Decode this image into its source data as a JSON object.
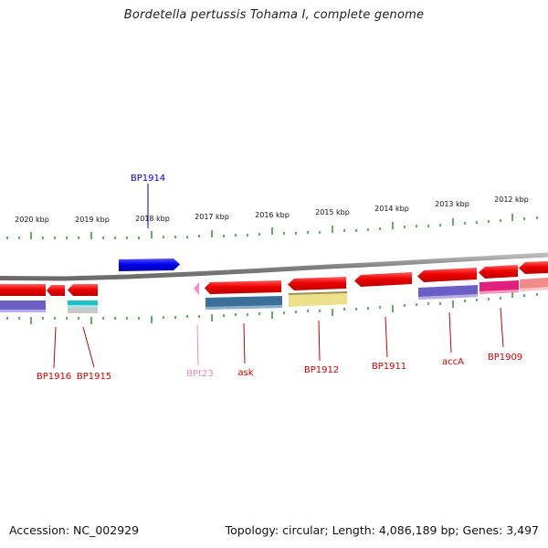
{
  "title": "Bordetella pertussis Tohama I, complete genome",
  "footer": {
    "accession": "Accession: NC_002929",
    "summary": "Topology: circular; Length: 4,086,189 bp; Genes: 3,497"
  },
  "scale_labels": [
    "2020 kbp",
    "2019 kbp",
    "2018 kbp",
    "2017 kbp",
    "2016 kbp",
    "2015 kbp",
    "2014 kbp",
    "2013 kbp",
    "2012 kbp"
  ],
  "gene_labels": [
    {
      "text": "BP1914",
      "color": "#0000cc"
    },
    {
      "text": "BP1916",
      "color": "#cc0000"
    },
    {
      "text": "BP1915",
      "color": "#cc0000"
    },
    {
      "text": "BPt23",
      "color": "#ee88bb"
    },
    {
      "text": "ask",
      "color": "#cc0000"
    },
    {
      "text": "BP1912",
      "color": "#cc0000"
    },
    {
      "text": "BP1911",
      "color": "#cc0000"
    },
    {
      "text": "accA",
      "color": "#cc0000"
    },
    {
      "text": "BP1909",
      "color": "#cc0000"
    }
  ],
  "colors": {
    "backbone": "#808080",
    "tick": "#228b22",
    "forward_gene": "#0000ee",
    "reverse_gene": "#ee0000",
    "trna": "#ff88cc"
  }
}
